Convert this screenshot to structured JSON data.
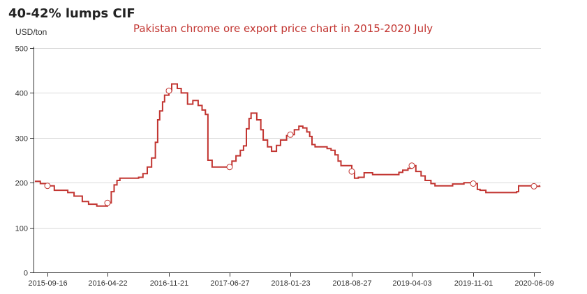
{
  "chart_data": {
    "type": "line",
    "title": "Pakistan chrome ore export price chart in 2015-2020 July",
    "heading": "40-42% lumps CIF",
    "ylabel": "USD/ton",
    "xlabel": "",
    "ylim": [
      0,
      500
    ],
    "y_ticks": [
      0,
      100,
      200,
      300,
      400,
      500
    ],
    "x_ticks": [
      "2015-09-16",
      "2016-04-22",
      "2016-11-21",
      "2017-06-27",
      "2018-01-23",
      "2018-08-27",
      "2019-04-03",
      "2019-11-01",
      "2020-06-09"
    ],
    "grid": true,
    "line_style": "step",
    "color": "#c23531",
    "series": [
      {
        "name": "",
        "points": [
          [
            "2015-08-01",
            203
          ],
          [
            "2015-08-21",
            198
          ],
          [
            "2015-09-16",
            193
          ],
          [
            "2015-10-11",
            183
          ],
          [
            "2015-11-29",
            178
          ],
          [
            "2015-12-22",
            170
          ],
          [
            "2016-01-21",
            158
          ],
          [
            "2016-02-13",
            152
          ],
          [
            "2016-03-14",
            148
          ],
          [
            "2016-04-22",
            155
          ],
          [
            "2016-05-05",
            180
          ],
          [
            "2016-05-15",
            195
          ],
          [
            "2016-05-25",
            205
          ],
          [
            "2016-06-04",
            210
          ],
          [
            "2016-08-08",
            212
          ],
          [
            "2016-08-23",
            220
          ],
          [
            "2016-09-07",
            235
          ],
          [
            "2016-09-22",
            255
          ],
          [
            "2016-10-05",
            290
          ],
          [
            "2016-10-13",
            340
          ],
          [
            "2016-10-20",
            360
          ],
          [
            "2016-10-30",
            380
          ],
          [
            "2016-11-06",
            395
          ],
          [
            "2016-11-21",
            405
          ],
          [
            "2016-12-01",
            420
          ],
          [
            "2016-12-21",
            410
          ],
          [
            "2017-01-04",
            400
          ],
          [
            "2017-01-27",
            375
          ],
          [
            "2017-02-15",
            383
          ],
          [
            "2017-03-06",
            372
          ],
          [
            "2017-03-20",
            362
          ],
          [
            "2017-04-01",
            352
          ],
          [
            "2017-04-10",
            250
          ],
          [
            "2017-04-25",
            235
          ],
          [
            "2017-06-27",
            235
          ],
          [
            "2017-07-05",
            248
          ],
          [
            "2017-07-19",
            260
          ],
          [
            "2017-08-03",
            272
          ],
          [
            "2017-08-14",
            282
          ],
          [
            "2017-08-24",
            320
          ],
          [
            "2017-09-02",
            343
          ],
          [
            "2017-09-09",
            355
          ],
          [
            "2017-09-29",
            340
          ],
          [
            "2017-10-13",
            318
          ],
          [
            "2017-10-21",
            295
          ],
          [
            "2017-11-05",
            280
          ],
          [
            "2017-11-19",
            270
          ],
          [
            "2017-12-06",
            283
          ],
          [
            "2017-12-20",
            295
          ],
          [
            "2018-01-10",
            305
          ],
          [
            "2018-01-23",
            307
          ],
          [
            "2018-02-06",
            318
          ],
          [
            "2018-02-22",
            326
          ],
          [
            "2018-03-08",
            322
          ],
          [
            "2018-03-22",
            313
          ],
          [
            "2018-04-01",
            303
          ],
          [
            "2018-04-09",
            285
          ],
          [
            "2018-04-20",
            280
          ],
          [
            "2018-06-01",
            276
          ],
          [
            "2018-06-15",
            272
          ],
          [
            "2018-06-29",
            262
          ],
          [
            "2018-07-10",
            248
          ],
          [
            "2018-07-20",
            238
          ],
          [
            "2018-08-27",
            225
          ],
          [
            "2018-09-06",
            210
          ],
          [
            "2018-09-20",
            212
          ],
          [
            "2018-10-11",
            222
          ],
          [
            "2018-11-11",
            218
          ],
          [
            "2019-02-15",
            223
          ],
          [
            "2019-03-01",
            228
          ],
          [
            "2019-03-20",
            232
          ],
          [
            "2019-04-03",
            238
          ],
          [
            "2019-04-17",
            225
          ],
          [
            "2019-05-05",
            215
          ],
          [
            "2019-05-19",
            205
          ],
          [
            "2019-06-08",
            198
          ],
          [
            "2019-06-22",
            193
          ],
          [
            "2019-08-22",
            197
          ],
          [
            "2019-09-30",
            200
          ],
          [
            "2019-11-01",
            198
          ],
          [
            "2019-11-16",
            185
          ],
          [
            "2019-11-26",
            183
          ],
          [
            "2019-12-17",
            178
          ],
          [
            "2020-04-07",
            180
          ],
          [
            "2020-04-14",
            193
          ],
          [
            "2020-06-09",
            192
          ],
          [
            "2020-06-30",
            193
          ]
        ],
        "markers": [
          [
            "2015-09-16",
            193
          ],
          [
            "2016-04-22",
            155
          ],
          [
            "2016-11-21",
            405
          ],
          [
            "2017-06-27",
            235
          ],
          [
            "2018-01-23",
            307
          ],
          [
            "2018-08-27",
            225
          ],
          [
            "2019-04-03",
            238
          ],
          [
            "2019-11-01",
            198
          ],
          [
            "2020-06-09",
            192
          ]
        ]
      }
    ]
  }
}
